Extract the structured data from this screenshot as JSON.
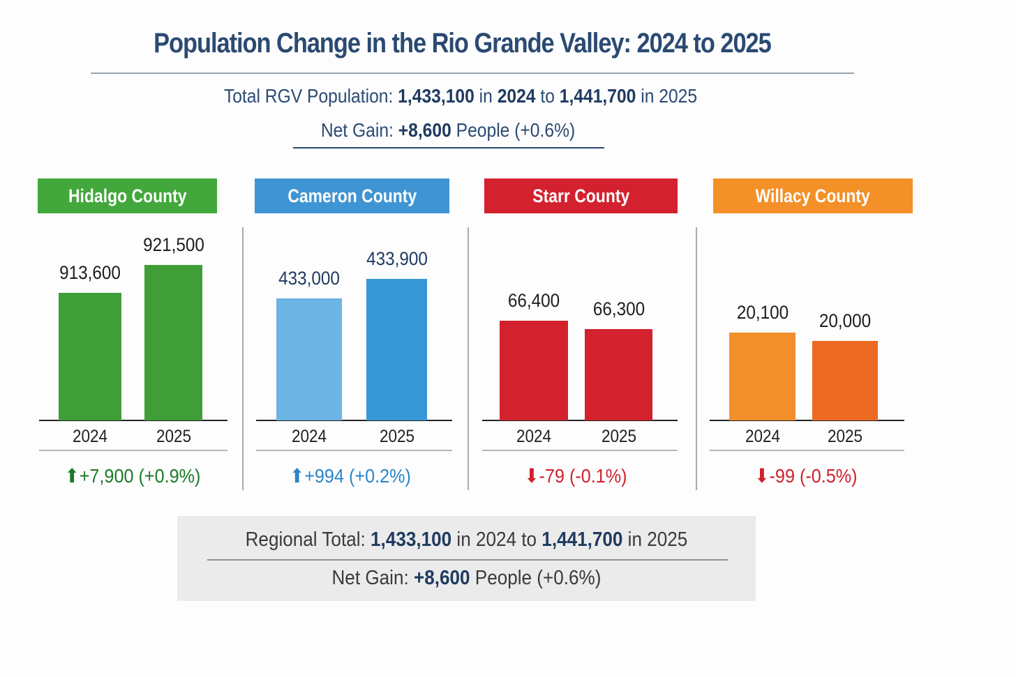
{
  "title": "Population Change in the Rio Grande Valley: 2024 to 2025",
  "summary": {
    "line1_prefix": "Total RGV Population:",
    "total_2024": "1,433,100",
    "in1": "in",
    "year1": "2024",
    "to": "to",
    "total_2025": "1,441,700",
    "in2": "in",
    "year2": "2025",
    "net_prefix": "Net Gain:",
    "net_value": "+8,600",
    "net_suffix": "People (+0.6%)"
  },
  "chart_data": {
    "type": "bar",
    "title": "Population Change in the Rio Grande Valley: 2024 to 2025",
    "categories": [
      "2024",
      "2025"
    ],
    "series": [
      {
        "name": "Hidalgo County",
        "values": [
          913600,
          921500
        ],
        "labels": [
          "913,600",
          "921,500"
        ],
        "change": "+7,900 (+0.9%)",
        "direction": "up",
        "colors": [
          "#3f9e38",
          "#3f9e38"
        ],
        "header_color": "#42a83b",
        "change_color": "#1e7a2a"
      },
      {
        "name": "Cameron County",
        "values": [
          433000,
          433900
        ],
        "labels": [
          "433,000",
          "433,900"
        ],
        "change": "+994 (+0.2%)",
        "direction": "up",
        "colors": [
          "#6cb4e3",
          "#3597d6"
        ],
        "header_color": "#3f95d3",
        "change_color": "#2a86c8"
      },
      {
        "name": "Starr County",
        "values": [
          66400,
          66300
        ],
        "labels": [
          "66,400",
          "66,300"
        ],
        "change": "-79 (-0.1%)",
        "direction": "down",
        "colors": [
          "#d3212d",
          "#d3212d"
        ],
        "header_color": "#d4212f",
        "change_color": "#d0202c"
      },
      {
        "name": "Willacy County",
        "values": [
          20100,
          20000
        ],
        "labels": [
          "20,100",
          "20,000"
        ],
        "change": "-99 (-0.5%)",
        "direction": "down",
        "colors": [
          "#f18f2a",
          "#ec6a22"
        ],
        "header_color": "#f39028",
        "change_color": "#d0202c"
      }
    ],
    "xlabel": "",
    "ylabel": ""
  },
  "icons": {
    "up": "arrow-up-icon",
    "down": "arrow-down-icon"
  },
  "footer": {
    "prefix": "Regional Total:",
    "total_2024": "1,433,100",
    "mid": "in 2024 to",
    "total_2025": "1,441,700",
    "end": "in 2025",
    "net_prefix": "Net Gain:",
    "net_value": "+8,600",
    "net_suffix": "People (+0.6%)"
  }
}
